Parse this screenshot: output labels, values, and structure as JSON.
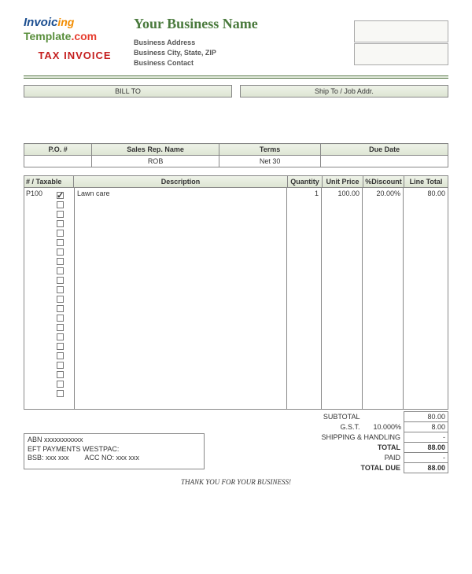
{
  "logo": {
    "line1a": "Invoic",
    "line1b": "ing",
    "line2a": "Template",
    "line2b": ".com"
  },
  "doc_type": "TAX INVOICE",
  "business": {
    "name": "Your Business Name",
    "address": "Business Address",
    "city_state_zip": "Business City, State, ZIP",
    "contact": "Business Contact"
  },
  "address_headers": {
    "bill_to": "BILL TO",
    "ship_to": "Ship To / Job Addr."
  },
  "meta": {
    "headers": {
      "po": "P.O. #",
      "rep": "Sales Rep. Name",
      "terms": "Terms",
      "due": "Due Date"
    },
    "values": {
      "po": "",
      "rep": "ROB",
      "terms": "Net 30",
      "due": ""
    }
  },
  "columns": {
    "num_taxable": "# / Taxable",
    "description": "Description",
    "quantity": "Quantity",
    "unit_price": "Unit Price",
    "discount": "%Discount",
    "line_total": "Line Total"
  },
  "items": [
    {
      "code": "P100",
      "taxable": true,
      "description": "Lawn care",
      "qty": "1",
      "unit_price": "100.00",
      "discount": "20.00%",
      "line_total": "80.00"
    }
  ],
  "blank_rows": 21,
  "totals": {
    "subtotal_label": "SUBTOTAL",
    "subtotal": "80.00",
    "gst_label": "G.S.T.",
    "gst_rate": "10.000%",
    "gst": "8.00",
    "shipping_label": "SHIPPING & HANDLING",
    "shipping": "-",
    "total_label": "TOTAL",
    "total": "88.00",
    "paid_label": "PAID",
    "paid": "-",
    "due_label": "TOTAL DUE",
    "due": "88.00"
  },
  "abn": {
    "line1": "ABN xxxxxxxxxxx",
    "line2": "EFT PAYMENTS WESTPAC:",
    "line3": "BSB: xxx xxx        ACC NO: xxx xxx"
  },
  "footer": "THANK YOU FOR YOUR BUSINESS!",
  "colors": {
    "header_green": "#4a7a3d",
    "tax_red": "#c41e1e",
    "band_bg": "#e5ebdc",
    "border": "#888888"
  }
}
